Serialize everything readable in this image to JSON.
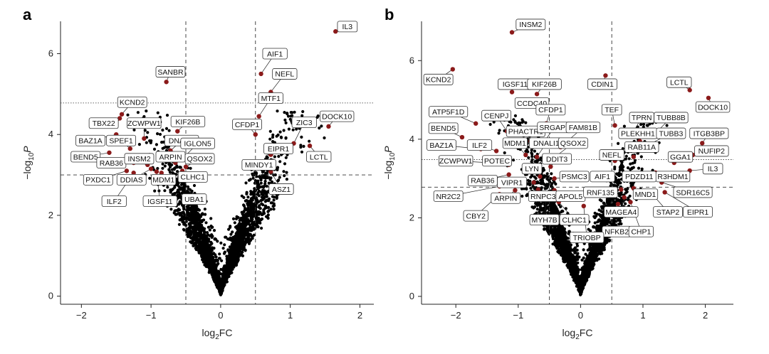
{
  "chart_data": [
    {
      "type": "scatter",
      "panel_letter": "a",
      "xlabel_base": "log",
      "xlabel_sub": "2",
      "xlabel_tail": "FC",
      "ylabel_prefix": "−log",
      "ylabel_sub": "10",
      "ylabel_var": "P",
      "xlim": [
        -2.3,
        2.2
      ],
      "ylim": [
        -0.2,
        6.8
      ],
      "xticks": [
        -2,
        -1,
        0,
        1,
        2
      ],
      "yticks": [
        0,
        2,
        4,
        6
      ],
      "vlines": [
        -0.5,
        0.5
      ],
      "hline_dashed": 3.0,
      "hline_dotted": 4.78,
      "highlight_color": "#8b1a1a",
      "point_color": "#000000",
      "highlighted": [
        {
          "gene": "IL3",
          "x": 1.65,
          "y": 6.55
        },
        {
          "gene": "SANBR",
          "x": -0.78,
          "y": 5.3
        },
        {
          "gene": "AIF1",
          "x": 0.58,
          "y": 5.5
        },
        {
          "gene": "NEFL",
          "x": 0.72,
          "y": 5.05
        },
        {
          "gene": "MTF1",
          "x": 0.55,
          "y": 4.45
        },
        {
          "gene": "KCND2",
          "x": -1.42,
          "y": 4.5
        },
        {
          "gene": "TBX22",
          "x": -1.45,
          "y": 4.4
        },
        {
          "gene": "ZCWPW1",
          "x": -1.1,
          "y": 3.9
        },
        {
          "gene": "BAZ1A",
          "x": -1.5,
          "y": 4.0
        },
        {
          "gene": "SPEF1",
          "x": -1.3,
          "y": 3.65
        },
        {
          "gene": "KIF26B",
          "x": -0.62,
          "y": 4.08
        },
        {
          "gene": "DNALI1",
          "x": -0.72,
          "y": 3.6
        },
        {
          "gene": "IGLON5",
          "x": -0.52,
          "y": 3.45
        },
        {
          "gene": "CFDP1",
          "x": 0.5,
          "y": 4.0
        },
        {
          "gene": "ZIC3",
          "x": 1.05,
          "y": 3.78
        },
        {
          "gene": "DOCK10",
          "x": 1.55,
          "y": 4.2
        },
        {
          "gene": "EIPR1",
          "x": 0.72,
          "y": 3.5
        },
        {
          "gene": "LCTL",
          "x": 1.28,
          "y": 3.72
        },
        {
          "gene": "BEND5",
          "x": -1.6,
          "y": 3.55
        },
        {
          "gene": "RAB36",
          "x": -1.25,
          "y": 3.3
        },
        {
          "gene": "INSM2",
          "x": -1.05,
          "y": 3.25
        },
        {
          "gene": "ARPIN",
          "x": -0.65,
          "y": 3.3
        },
        {
          "gene": "QSOX2",
          "x": -0.5,
          "y": 3.2
        },
        {
          "gene": "MINDY1",
          "x": 0.65,
          "y": 3.3
        },
        {
          "gene": "PXDC1",
          "x": -1.35,
          "y": 3.1
        },
        {
          "gene": "DDIAS",
          "x": -1.0,
          "y": 3.15
        },
        {
          "gene": "MDM1",
          "x": -0.85,
          "y": 3.05
        },
        {
          "gene": "CLHC1",
          "x": -0.55,
          "y": 3.1
        },
        {
          "gene": "ASZ1",
          "x": 0.72,
          "y": 3.08
        },
        {
          "gene": "ILF2",
          "x": -1.25,
          "y": 3.05
        },
        {
          "gene": "IGSF11",
          "x": -0.92,
          "y": 3.08
        },
        {
          "gene": "UBA1",
          "x": -0.58,
          "y": 3.02
        }
      ],
      "labels": [
        {
          "gene": "IL3",
          "lx": 1.82,
          "ly": 6.67
        },
        {
          "gene": "SANBR",
          "lx": -0.72,
          "ly": 5.55
        },
        {
          "gene": "AIF1",
          "lx": 0.78,
          "ly": 6.0
        },
        {
          "gene": "NEFL",
          "lx": 0.92,
          "ly": 5.5
        },
        {
          "gene": "MTF1",
          "lx": 0.72,
          "ly": 4.9
        },
        {
          "gene": "KCND2",
          "lx": -1.27,
          "ly": 4.8
        },
        {
          "gene": "TBX22",
          "lx": -1.68,
          "ly": 4.28
        },
        {
          "gene": "ZCWPW1",
          "lx": -1.1,
          "ly": 4.28
        },
        {
          "gene": "BAZ1A",
          "lx": -1.87,
          "ly": 3.85
        },
        {
          "gene": "SPEF1",
          "lx": -1.43,
          "ly": 3.85
        },
        {
          "gene": "KIF26B",
          "lx": -0.47,
          "ly": 4.32
        },
        {
          "gene": "DNALI1",
          "lx": -0.56,
          "ly": 3.85
        },
        {
          "gene": "IGLON5",
          "lx": -0.33,
          "ly": 3.78
        },
        {
          "gene": "CFDP1",
          "lx": 0.38,
          "ly": 4.25
        },
        {
          "gene": "ZIC3",
          "lx": 1.2,
          "ly": 4.3
        },
        {
          "gene": "DOCK10",
          "lx": 1.67,
          "ly": 4.45
        },
        {
          "gene": "EIPR1",
          "lx": 0.83,
          "ly": 3.65
        },
        {
          "gene": "LCTL",
          "lx": 1.41,
          "ly": 3.45
        },
        {
          "gene": "BEND5",
          "lx": -1.94,
          "ly": 3.45
        },
        {
          "gene": "RAB36",
          "lx": -1.57,
          "ly": 3.3
        },
        {
          "gene": "INSM2",
          "lx": -1.17,
          "ly": 3.4
        },
        {
          "gene": "ARPIN",
          "lx": -0.72,
          "ly": 3.45
        },
        {
          "gene": "QSOX2",
          "lx": -0.3,
          "ly": 3.4
        },
        {
          "gene": "MINDY1",
          "lx": 0.55,
          "ly": 3.25
        },
        {
          "gene": "PXDC1",
          "lx": -1.76,
          "ly": 2.88
        },
        {
          "gene": "DDIAS",
          "lx": -1.28,
          "ly": 2.88
        },
        {
          "gene": "MDM1",
          "lx": -0.82,
          "ly": 2.88
        },
        {
          "gene": "CLHC1",
          "lx": -0.4,
          "ly": 2.95
        },
        {
          "gene": "ASZ1",
          "lx": 0.87,
          "ly": 2.65
        },
        {
          "gene": "ILF2",
          "lx": -1.53,
          "ly": 2.35
        },
        {
          "gene": "IGSF11",
          "lx": -0.87,
          "ly": 2.35
        },
        {
          "gene": "UBA1",
          "lx": -0.38,
          "ly": 2.4
        }
      ]
    },
    {
      "type": "scatter",
      "panel_letter": "b",
      "xlabel_base": "log",
      "xlabel_sub": "2",
      "xlabel_tail": "FC",
      "ylabel_prefix": "−log",
      "ylabel_sub": "10",
      "ylabel_var": "P",
      "xlim": [
        -2.55,
        2.45
      ],
      "ylim": [
        -0.2,
        7.0
      ],
      "xticks": [
        -2,
        -1,
        0,
        1,
        2
      ],
      "yticks": [
        0,
        2,
        4,
        6
      ],
      "vlines": [
        -0.5,
        0.5
      ],
      "hline_dashed": 2.78,
      "hline_dotted": 3.48,
      "highlight_color": "#8b1a1a",
      "point_color": "#000000",
      "highlighted": [
        {
          "gene": "INSM2",
          "x": -1.1,
          "y": 6.72
        },
        {
          "gene": "KCND2",
          "x": -2.05,
          "y": 5.78
        },
        {
          "gene": "IGSF11",
          "x": -1.1,
          "y": 5.2
        },
        {
          "gene": "KIF26B",
          "x": -0.7,
          "y": 5.15
        },
        {
          "gene": "CDIN1",
          "x": 0.4,
          "y": 5.62
        },
        {
          "gene": "LCTL",
          "x": 1.75,
          "y": 5.25
        },
        {
          "gene": "DOCK10",
          "x": 2.05,
          "y": 5.05
        },
        {
          "gene": "CCDC40",
          "x": -0.6,
          "y": 4.75
        },
        {
          "gene": "ATP5F1D",
          "x": -1.68,
          "y": 4.4
        },
        {
          "gene": "CENPJ",
          "x": -1.18,
          "y": 4.2
        },
        {
          "gene": "CFDP1",
          "x": -0.55,
          "y": 4.4
        },
        {
          "gene": "BEND5",
          "x": -1.9,
          "y": 4.05
        },
        {
          "gene": "PHACTR1",
          "x": -0.8,
          "y": 3.95
        },
        {
          "gene": "SRGAP2",
          "x": -0.6,
          "y": 3.9
        },
        {
          "gene": "FAM81B",
          "x": -0.32,
          "y": 3.8
        },
        {
          "gene": "TEF",
          "x": 0.55,
          "y": 4.35
        },
        {
          "gene": "TPRN",
          "x": 0.85,
          "y": 4.2
        },
        {
          "gene": "TUBB8B",
          "x": 1.2,
          "y": 4.15
        },
        {
          "gene": "PLEKHH1",
          "x": 0.95,
          "y": 3.95
        },
        {
          "gene": "TUBB3",
          "x": 0.95,
          "y": 3.75
        },
        {
          "gene": "ITGB3BP",
          "x": 1.95,
          "y": 3.9
        },
        {
          "gene": "BAZ1A",
          "x": -1.6,
          "y": 3.75
        },
        {
          "gene": "ILF2",
          "x": -1.35,
          "y": 3.7
        },
        {
          "gene": "MDM1",
          "x": -0.88,
          "y": 3.6
        },
        {
          "gene": "DNALI1",
          "x": -0.7,
          "y": 3.55
        },
        {
          "gene": "QSOX2",
          "x": -0.45,
          "y": 3.5
        },
        {
          "gene": "NUFIP2",
          "x": 1.8,
          "y": 3.6
        },
        {
          "gene": "ZCWPW1",
          "x": -1.45,
          "y": 3.4
        },
        {
          "gene": "POTEC",
          "x": -1.15,
          "y": 3.35
        },
        {
          "gene": "DDIT3",
          "x": -0.48,
          "y": 3.3
        },
        {
          "gene": "NEFL",
          "x": 0.55,
          "y": 3.45
        },
        {
          "gene": "RAB11A",
          "x": 0.85,
          "y": 3.55
        },
        {
          "gene": "GGA1",
          "x": 1.5,
          "y": 3.4
        },
        {
          "gene": "LYN",
          "x": -0.65,
          "y": 3.05
        },
        {
          "gene": "IL3",
          "x": 1.75,
          "y": 3.2
        },
        {
          "gene": "RAB36",
          "x": -1.15,
          "y": 3.1
        },
        {
          "gene": "VIPR1",
          "x": -0.75,
          "y": 2.9
        },
        {
          "gene": "PSMC3",
          "x": -0.42,
          "y": 3.0
        },
        {
          "gene": "AIF1",
          "x": 0.5,
          "y": 3.1
        },
        {
          "gene": "PDZD11",
          "x": 0.7,
          "y": 3.05
        },
        {
          "gene": "R3HDM1",
          "x": 1.2,
          "y": 3.15
        },
        {
          "gene": "NR2C2",
          "x": -1.3,
          "y": 2.8
        },
        {
          "gene": "RNPC3",
          "x": -0.68,
          "y": 2.72
        },
        {
          "gene": "ARPIN",
          "x": -1.05,
          "y": 2.7
        },
        {
          "gene": "APOL5",
          "x": -0.42,
          "y": 2.7
        },
        {
          "gene": "RNF135",
          "x": 0.65,
          "y": 2.72
        },
        {
          "gene": "MND1",
          "x": 0.85,
          "y": 2.75
        },
        {
          "gene": "SDR16C5",
          "x": 1.3,
          "y": 2.9
        },
        {
          "gene": "CBY2",
          "x": -1.3,
          "y": 2.6
        },
        {
          "gene": "MAGEA4",
          "x": 0.7,
          "y": 2.52
        },
        {
          "gene": "STAP2",
          "x": 1.15,
          "y": 2.6
        },
        {
          "gene": "EIPR1",
          "x": 1.35,
          "y": 2.65
        },
        {
          "gene": "MYH7B",
          "x": -0.55,
          "y": 2.5
        },
        {
          "gene": "CLHC1",
          "x": -0.35,
          "y": 2.4
        },
        {
          "gene": "NFKB2",
          "x": 0.6,
          "y": 2.35
        },
        {
          "gene": "CHP1",
          "x": 0.8,
          "y": 2.4
        },
        {
          "gene": "TRIOBP",
          "x": 0.05,
          "y": 2.3
        }
      ],
      "labels": [
        {
          "gene": "INSM2",
          "lx": -0.8,
          "ly": 6.92
        },
        {
          "gene": "KCND2",
          "lx": -2.28,
          "ly": 5.52
        },
        {
          "gene": "IGSF11",
          "lx": -1.05,
          "ly": 5.4
        },
        {
          "gene": "KIF26B",
          "lx": -0.58,
          "ly": 5.4
        },
        {
          "gene": "CDIN1",
          "lx": 0.35,
          "ly": 5.4
        },
        {
          "gene": "LCTL",
          "lx": 1.58,
          "ly": 5.45
        },
        {
          "gene": "DOCK10",
          "lx": 2.12,
          "ly": 4.82
        },
        {
          "gene": "CCDC40",
          "lx": -0.78,
          "ly": 4.92
        },
        {
          "gene": "ATP5F1D",
          "lx": -2.12,
          "ly": 4.7
        },
        {
          "gene": "CENPJ",
          "lx": -1.35,
          "ly": 4.6
        },
        {
          "gene": "CFDP1",
          "lx": -0.48,
          "ly": 4.75
        },
        {
          "gene": "BEND5",
          "lx": -2.2,
          "ly": 4.28
        },
        {
          "gene": "PHACTR1",
          "lx": -0.88,
          "ly": 4.2
        },
        {
          "gene": "SRGAP2",
          "lx": -0.42,
          "ly": 4.3
        },
        {
          "gene": "FAM81B",
          "lx": 0.04,
          "ly": 4.3
        },
        {
          "gene": "TEF",
          "lx": 0.5,
          "ly": 4.75
        },
        {
          "gene": "TPRN",
          "lx": 0.98,
          "ly": 4.55
        },
        {
          "gene": "TUBB8B",
          "lx": 1.45,
          "ly": 4.55
        },
        {
          "gene": "PLEKHH1",
          "lx": 0.92,
          "ly": 4.15
        },
        {
          "gene": "TUBB3",
          "lx": 1.45,
          "ly": 4.15
        },
        {
          "gene": "ITGB3BP",
          "lx": 2.06,
          "ly": 4.15
        },
        {
          "gene": "BAZ1A",
          "lx": -2.23,
          "ly": 3.85
        },
        {
          "gene": "ILF2",
          "lx": -1.62,
          "ly": 3.85
        },
        {
          "gene": "MDM1",
          "lx": -1.05,
          "ly": 3.9
        },
        {
          "gene": "DNALI1",
          "lx": -0.55,
          "ly": 3.9
        },
        {
          "gene": "QSOX2",
          "lx": -0.12,
          "ly": 3.9
        },
        {
          "gene": "NUFIP2",
          "lx": 2.1,
          "ly": 3.7
        },
        {
          "gene": "ZCWPW1",
          "lx": -2.0,
          "ly": 3.45
        },
        {
          "gene": "POTEC",
          "lx": -1.34,
          "ly": 3.45
        },
        {
          "gene": "DDIT3",
          "lx": -0.38,
          "ly": 3.5
        },
        {
          "gene": "NEFL",
          "lx": 0.5,
          "ly": 3.6
        },
        {
          "gene": "RAB11A",
          "lx": 0.98,
          "ly": 3.8
        },
        {
          "gene": "GGA1",
          "lx": 1.6,
          "ly": 3.55
        },
        {
          "gene": "LYN",
          "lx": -0.78,
          "ly": 3.25
        },
        {
          "gene": "IL3",
          "lx": 2.12,
          "ly": 3.25
        },
        {
          "gene": "RAB36",
          "lx": -1.57,
          "ly": 2.95
        },
        {
          "gene": "VIPR1",
          "lx": -1.1,
          "ly": 2.9
        },
        {
          "gene": "PSMC3",
          "lx": -0.1,
          "ly": 3.05
        },
        {
          "gene": "AIF1",
          "lx": 0.35,
          "ly": 3.05
        },
        {
          "gene": "PDZD11",
          "lx": 0.94,
          "ly": 3.05
        },
        {
          "gene": "R3HDM1",
          "lx": 1.48,
          "ly": 3.05
        },
        {
          "gene": "NR2C2",
          "lx": -2.12,
          "ly": 2.55
        },
        {
          "gene": "RNPC3",
          "lx": -0.6,
          "ly": 2.55
        },
        {
          "gene": "ARPIN",
          "lx": -1.2,
          "ly": 2.5
        },
        {
          "gene": "APOL5",
          "lx": -0.16,
          "ly": 2.55
        },
        {
          "gene": "RNF135",
          "lx": 0.32,
          "ly": 2.65
        },
        {
          "gene": "MND1",
          "lx": 1.04,
          "ly": 2.6
        },
        {
          "gene": "SDR16C5",
          "lx": 1.8,
          "ly": 2.65
        },
        {
          "gene": "CBY2",
          "lx": -1.68,
          "ly": 2.05
        },
        {
          "gene": "MAGEA4",
          "lx": 0.65,
          "ly": 2.15
        },
        {
          "gene": "STAP2",
          "lx": 1.4,
          "ly": 2.15
        },
        {
          "gene": "EIPR1",
          "lx": 1.88,
          "ly": 2.15
        },
        {
          "gene": "MYH7B",
          "lx": -0.58,
          "ly": 1.95
        },
        {
          "gene": "CLHC1",
          "lx": -0.1,
          "ly": 1.95
        },
        {
          "gene": "NFKB2",
          "lx": 0.58,
          "ly": 1.65
        },
        {
          "gene": "CHP1",
          "lx": 0.97,
          "ly": 1.65
        },
        {
          "gene": "TRIOBP",
          "lx": 0.1,
          "ly": 1.5
        }
      ]
    }
  ]
}
